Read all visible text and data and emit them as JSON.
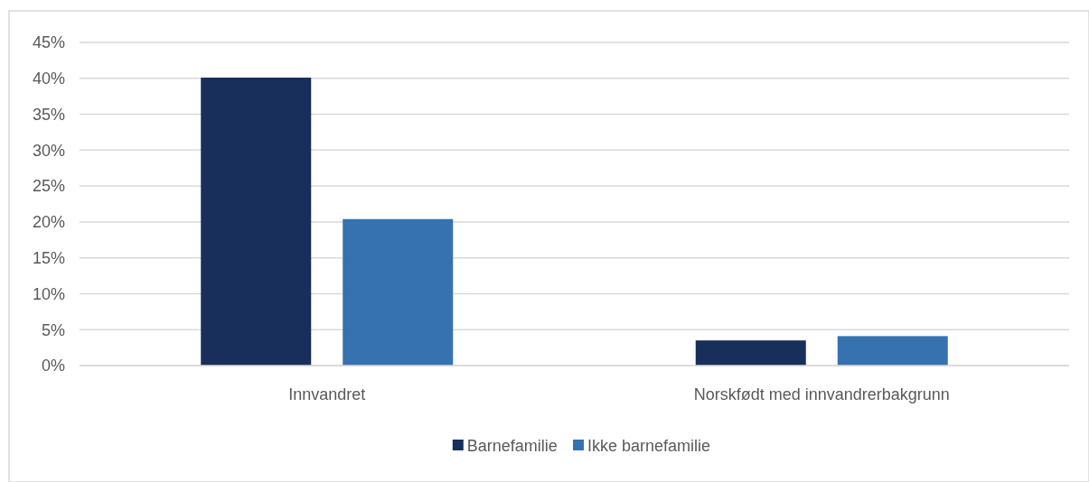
{
  "chart_data": {
    "type": "bar",
    "categories": [
      "Innvandret",
      "Norskfødt med innvandrerbakgrunn"
    ],
    "series": [
      {
        "name": "Barnefamilie",
        "color": "#182f5c",
        "values": [
          40.1,
          3.5
        ]
      },
      {
        "name": "Ikke barnefamilie",
        "color": "#3672b0",
        "values": [
          20.4,
          4.1
        ]
      }
    ],
    "ylim": [
      0,
      45
    ],
    "yticks": [
      {
        "value": 0,
        "label": "0%"
      },
      {
        "value": 5,
        "label": "5%"
      },
      {
        "value": 10,
        "label": "10%"
      },
      {
        "value": 15,
        "label": "15%"
      },
      {
        "value": 20,
        "label": "20%"
      },
      {
        "value": 25,
        "label": "25%"
      },
      {
        "value": 30,
        "label": "30%"
      },
      {
        "value": 35,
        "label": "35%"
      },
      {
        "value": 40,
        "label": "40%"
      },
      {
        "value": 45,
        "label": "45%"
      }
    ],
    "grid": "y",
    "legend": "bottom"
  }
}
